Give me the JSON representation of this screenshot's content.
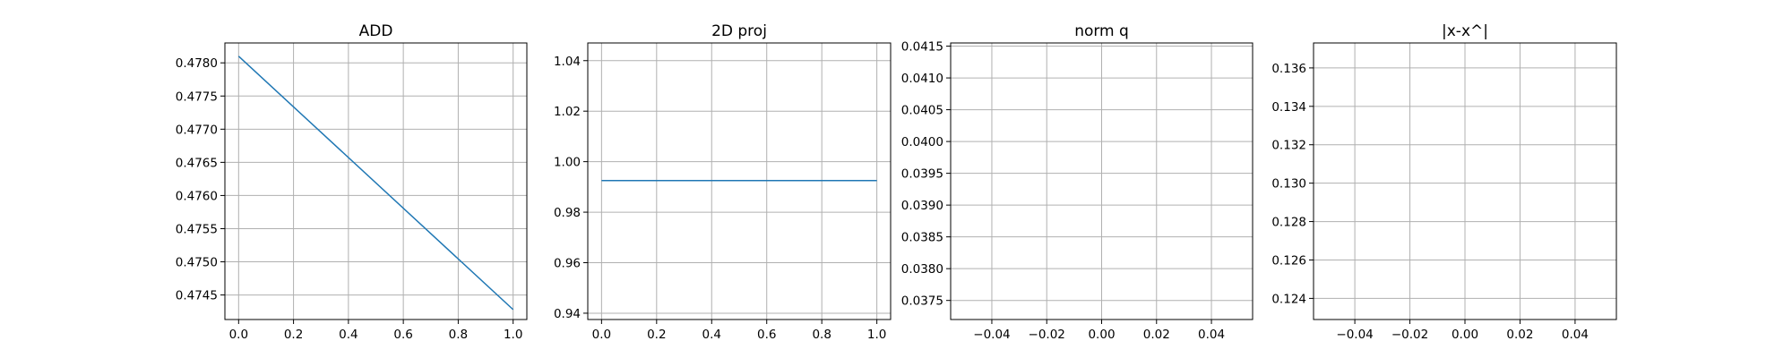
{
  "chart_data": [
    {
      "type": "line",
      "title": "ADD",
      "xlim": [
        -0.05,
        1.05
      ],
      "ylim": [
        0.47413,
        0.4783
      ],
      "xticks": [
        0.0,
        0.2,
        0.4,
        0.6,
        0.8,
        1.0
      ],
      "xtick_labels": [
        "0.0",
        "0.2",
        "0.4",
        "0.6",
        "0.8",
        "1.0"
      ],
      "yticks": [
        0.4745,
        0.475,
        0.4755,
        0.476,
        0.4765,
        0.477,
        0.4775,
        0.478
      ],
      "ytick_labels": [
        "0.4745",
        "0.4750",
        "0.4755",
        "0.4760",
        "0.4765",
        "0.4770",
        "0.4775",
        "0.4780"
      ],
      "grid": true,
      "color": "#1f77b4",
      "series": [
        {
          "x": [
            0.0,
            1.0
          ],
          "y": [
            0.4781,
            0.47428
          ]
        }
      ]
    },
    {
      "type": "line",
      "title": "2D proj",
      "xlim": [
        -0.05,
        1.05
      ],
      "ylim": [
        0.9375,
        1.047
      ],
      "xticks": [
        0.0,
        0.2,
        0.4,
        0.6,
        0.8,
        1.0
      ],
      "xtick_labels": [
        "0.0",
        "0.2",
        "0.4",
        "0.6",
        "0.8",
        "1.0"
      ],
      "yticks": [
        0.94,
        0.96,
        0.98,
        1.0,
        1.02,
        1.04
      ],
      "ytick_labels": [
        "0.94",
        "0.96",
        "0.98",
        "1.00",
        "1.02",
        "1.04"
      ],
      "grid": true,
      "color": "#1f77b4",
      "series": [
        {
          "x": [
            0.0,
            1.0
          ],
          "y": [
            0.9925,
            0.9925
          ]
        }
      ]
    },
    {
      "type": "line",
      "title": "norm q",
      "xlim": [
        -0.055,
        0.055
      ],
      "ylim": [
        0.0372,
        0.04155
      ],
      "xticks": [
        -0.04,
        -0.02,
        0.0,
        0.02,
        0.04
      ],
      "xtick_labels": [
        "−0.04",
        "−0.02",
        "0.00",
        "0.02",
        "0.04"
      ],
      "yticks": [
        0.0375,
        0.038,
        0.0385,
        0.039,
        0.0395,
        0.04,
        0.0405,
        0.041,
        0.0415
      ],
      "ytick_labels": [
        "0.0375",
        "0.0380",
        "0.0385",
        "0.0390",
        "0.0395",
        "0.0400",
        "0.0405",
        "0.0410",
        "0.0415"
      ],
      "grid": true,
      "color": "#1f77b4",
      "series": []
    },
    {
      "type": "line",
      "title": "|x-x^|",
      "xlim": [
        -0.055,
        0.055
      ],
      "ylim": [
        0.1229,
        0.1373
      ],
      "xticks": [
        -0.04,
        -0.02,
        0.0,
        0.02,
        0.04
      ],
      "xtick_labels": [
        "−0.04",
        "−0.02",
        "0.00",
        "0.02",
        "0.04"
      ],
      "yticks": [
        0.124,
        0.126,
        0.128,
        0.13,
        0.132,
        0.134,
        0.136
      ],
      "ytick_labels": [
        "0.124",
        "0.126",
        "0.128",
        "0.130",
        "0.132",
        "0.134",
        "0.136"
      ],
      "grid": true,
      "color": "#1f77b4",
      "series": []
    }
  ]
}
